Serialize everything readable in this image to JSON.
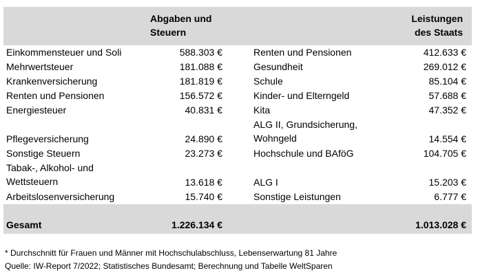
{
  "table": {
    "header_left": "Abgaben und\nSteuern",
    "header_right": "Leistungen\ndes Staats",
    "left_rows": [
      {
        "label": "Einkommensteuer und Soli",
        "value": "588.303 €"
      },
      {
        "label": "Mehrwertsteuer",
        "value": "181.088 €"
      },
      {
        "label": "Krankenversicherung",
        "value": "181.819 €"
      },
      {
        "label": "Renten und Pensionen",
        "value": "156.572 €"
      },
      {
        "label": "Energiesteuer",
        "value": "40.831 €"
      },
      {
        "label": "Pflegeversicherung",
        "value": "24.890 €"
      },
      {
        "label": "Sonstige Steuern",
        "value": "23.273 €"
      },
      {
        "label": "Tabak-, Alkohol- und\nWettsteuern",
        "value": "13.618 €"
      },
      {
        "label": "Arbeitslosenversicherung",
        "value": "15.740 €"
      }
    ],
    "right_rows": [
      {
        "label": "Renten und Pensionen",
        "value": "412.633 €"
      },
      {
        "label": "Gesundheit",
        "value": "269.012 €"
      },
      {
        "label": "Schule",
        "value": "85.104 €"
      },
      {
        "label": "Kinder- und Elterngeld",
        "value": "57.688 €"
      },
      {
        "label": "Kita",
        "value": "47.352 €"
      },
      {
        "label": "ALG II, Grundsicherung,\nWohngeld",
        "value": "14.554 €"
      },
      {
        "label": "Hochschule und BAföG",
        "value": "104.705 €"
      },
      {
        "label": "ALG I",
        "value": "15.203 €"
      },
      {
        "label": "Sonstige Leistungen",
        "value": "6.777 €"
      }
    ],
    "total_label": "Gesamt",
    "total_left": "1.226.134 €",
    "total_right": "1.013.028 €"
  },
  "footnote": "* Durchschnitt für Frauen und Männer mit Hochschulabschluss, Lebenserwartung 81 Jahre",
  "source": "Quelle: IW-Report 7/2022; Statistisches Bundesamt; Berechnung und Tabelle WeltSparen"
}
